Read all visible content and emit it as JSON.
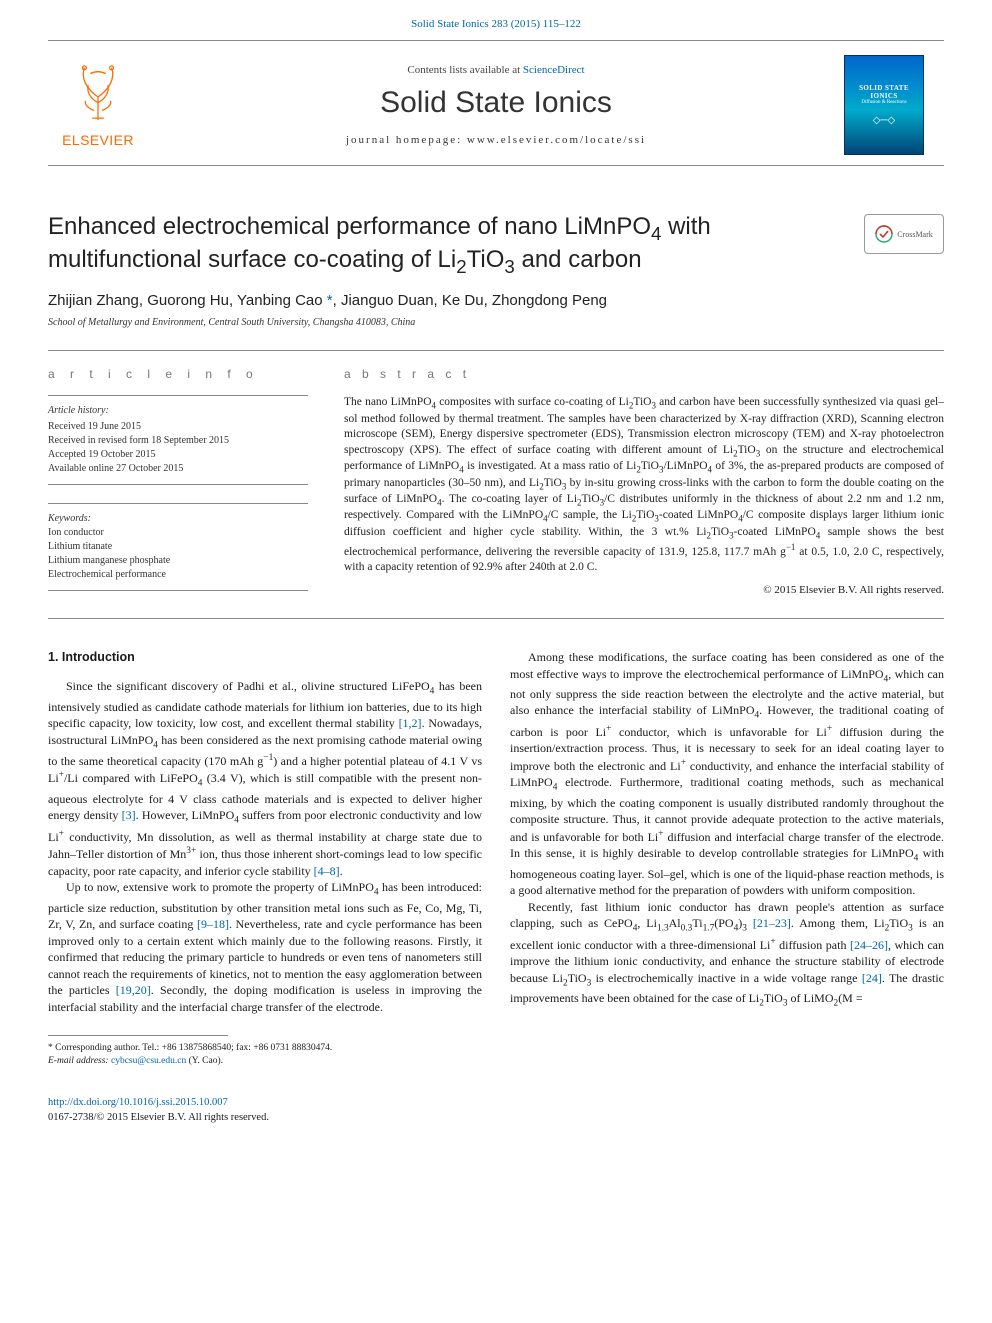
{
  "header_link": {
    "text": "Solid State Ionics 283 (2015) 115–122",
    "href": "#"
  },
  "masthead": {
    "contents_line_prefix": "Contents lists available at ",
    "contents_line_link": "ScienceDirect",
    "journal_title": "Solid State Ionics",
    "homepage_label": "journal homepage: www.elsevier.com/locate/ssi",
    "elsevier_word": "ELSEVIER",
    "cover": {
      "title": "SOLID STATE IONICS",
      "subtitle": "Diffusion & Reactions"
    }
  },
  "crossmark_label": "CrossMark",
  "article": {
    "title_html": "Enhanced electrochemical performance of nano LiMnPO<sub class='sub'>4</sub> with multifunctional surface co-coating of Li<sub class='sub'>2</sub>TiO<sub class='sub'>3</sub> and carbon",
    "authors_html": "Zhijian Zhang, Guorong Hu, Yanbing Cao <span class='asterisk'>*</span>, Jianguo Duan, Ke Du, Zhongdong Peng",
    "affiliation": "School of Metallurgy and Environment, Central South University, Changsha 410083, China"
  },
  "section_labels": {
    "article_info": "a r t i c l e   i n f o",
    "abstract": "A B S T R A C T"
  },
  "history": {
    "label": "Article history:",
    "lines": [
      "Received 19 June 2015",
      "Received in revised form 18 September 2015",
      "Accepted 19 October 2015",
      "Available online 27 October 2015"
    ]
  },
  "keywords": {
    "label": "Keywords:",
    "items": [
      "Ion conductor",
      "Lithium titanate",
      "Lithium manganese phosphate",
      "Electrochemical performance"
    ]
  },
  "abstract_html": "The nano LiMnPO<sub class='sub'>4</sub> composites with surface co-coating of Li<sub class='sub'>2</sub>TiO<sub class='sub'>3</sub> and carbon have been successfully synthesized via quasi gel–sol method followed by thermal treatment. The samples have been characterized by X-ray diffraction (XRD), Scanning electron microscope (SEM), Energy dispersive spectrometer (EDS), Transmission electron microscopy (TEM) and X-ray photoelectron spectroscopy (XPS). The effect of surface coating with different amount of Li<sub class='sub'>2</sub>TiO<sub class='sub'>3</sub> on the structure and electrochemical performance of LiMnPO<sub class='sub'>4</sub> is investigated. At a mass ratio of Li<sub class='sub'>2</sub>TiO<sub class='sub'>3</sub>/LiMnPO<sub class='sub'>4</sub> of 3%, the as-prepared products are composed of primary nanoparticles (30–50 nm), and Li<sub class='sub'>2</sub>TiO<sub class='sub'>3</sub> by in-situ growing cross-links with the carbon to form the double coating on the surface of LiMnPO<sub class='sub'>4</sub>. The co-coating layer of Li<sub class='sub'>2</sub>TiO<sub class='sub'>3</sub>/C distributes uniformly in the thickness of about 2.2 nm and 1.2 nm, respectively. Compared with the LiMnPO<sub class='sub'>4</sub>/C sample, the Li<sub class='sub'>2</sub>TiO<sub class='sub'>3</sub>-coated LiMnPO<sub class='sub'>4</sub>/C composite displays larger lithium ionic diffusion coefficient and higher cycle stability. Within, the 3 wt.% Li<sub class='sub'>2</sub>TiO<sub class='sub'>3</sub>-coated LiMnPO<sub class='sub'>4</sub> sample shows the best electrochemical performance, delivering the reversible capacity of 131.9, 125.8, 117.7 mAh g<sup class='sup'>−1</sup> at 0.5, 1.0, 2.0 C, respectively, with a capacity retention of 92.9% after 240th at 2.0 C.",
  "copyright": "© 2015 Elsevier B.V. All rights reserved.",
  "intro_heading": "1. Introduction",
  "intro_paragraphs_html": [
    "Since the significant discovery of Padhi et al., olivine structured LiFePO<sub class='sub'>4</sub> has been intensively studied as candidate cathode materials for lithium ion batteries, due to its high specific capacity, low toxicity, low cost, and excellent thermal stability <span class='ref'>[1,2]</span>. Nowadays, isostructural LiMnPO<sub class='sub'>4</sub> has been considered as the next promising cathode material owing to the same theoretical capacity (170 mAh g<sup class='sup'>−1</sup>) and a higher potential plateau of 4.1 V vs Li<sup class='sup'>+</sup>/Li compared with LiFePO<sub class='sub'>4</sub> (3.4 V), which is still compatible with the present non-aqueous electrolyte for 4 V class cathode materials and is expected to deliver higher energy density <span class='ref'>[3]</span>. However, LiMnPO<sub class='sub'>4</sub> suffers from poor electronic conductivity and low Li<sup class='sup'>+</sup> conductivity, Mn dissolution, as well as thermal instability at charge state due to Jahn–Teller distortion of Mn<sup class='sup'>3+</sup> ion, thus those inherent short-comings lead to low specific capacity, poor rate capacity, and inferior cycle stability <span class='ref'>[4–8]</span>.",
    "Up to now, extensive work to promote the property of LiMnPO<sub class='sub'>4</sub> has been introduced: particle size reduction, substitution by other transition metal ions such as Fe, Co, Mg, Ti, Zr, V, Zn, and surface coating <span class='ref'>[9–18]</span>. Nevertheless, rate and cycle performance has been improved only to a certain extent which mainly due to the following reasons. Firstly, it confirmed that reducing the primary particle to hundreds or even tens of nanometers still cannot reach the requirements of kinetics, not to mention the easy agglomeration between the particles <span class='ref'>[19,20]</span>. Secondly, the doping modification is useless in improving the interfacial stability and the interfacial charge transfer of the electrode.",
    "Among these modifications, the surface coating has been considered as one of the most effective ways to improve the electrochemical performance of LiMnPO<sub class='sub'>4</sub>, which can not only suppress the side reaction between the electrolyte and the active material, but also enhance the interfacial stability of LiMnPO<sub class='sub'>4</sub>. However, the traditional coating of carbon is poor Li<sup class='sup'>+</sup> conductor, which is unfavorable for Li<sup class='sup'>+</sup> diffusion during the insertion/extraction process. Thus, it is necessary to seek for an ideal coating layer to improve both the electronic and Li<sup class='sup'>+</sup> conductivity, and enhance the interfacial stability of LiMnPO<sub class='sub'>4</sub> electrode. Furthermore, traditional coating methods, such as mechanical mixing, by which the coating component is usually distributed randomly throughout the composite structure. Thus, it cannot provide adequate protection to the active materials, and is unfavorable for both Li<sup class='sup'>+</sup> diffusion and interfacial charge transfer of the electrode. In this sense, it is highly desirable to develop controllable strategies for LiMnPO<sub class='sub'>4</sub> with homogeneous coating layer. Sol–gel, which is one of the liquid-phase reaction methods, is a good alternative method for the preparation of powders with uniform composition.",
    "Recently, fast lithium ionic conductor has drawn people's attention as surface clapping, such as CePO<sub class='sub'>4</sub>, Li<sub class='sub'>1.3</sub>Al<sub class='sub'>0.3</sub>Ti<sub class='sub'>1.7</sub>(PO<sub class='sub'>4</sub>)<sub class='sub'>3</sub> <span class='ref'>[21–23]</span>. Among them, Li<sub class='sub'>2</sub>TiO<sub class='sub'>3</sub> is an excellent ionic conductor with a three-dimensional Li<sup class='sup'>+</sup> diffusion path <span class='ref'>[24–26]</span>, which can improve the lithium ionic conductivity, and enhance the structure stability of electrode because Li<sub class='sub'>2</sub>TiO<sub class='sub'>3</sub> is electrochemically inactive in a wide voltage range <span class='ref'>[24]</span>. The drastic improvements have been obtained for the case of Li<sub class='sub'>2</sub>TiO<sub class='sub'>3</sub> of LiMO<sub class='sub'>2</sub>(M ="
  ],
  "footnote_html": "* Corresponding author. Tel.: +86 13875868540; fax: +86 0731 88830474.<br><i>E-mail address:</i> <a href='#'>cybcsu@csu.edu.cn</a> (Y. Cao).",
  "footer": {
    "doi_link": "http://dx.doi.org/10.1016/j.ssi.2015.10.007",
    "issn_line": "0167-2738/© 2015 Elsevier B.V. All rights reserved."
  },
  "colors": {
    "link": "#0066aa",
    "elsevier_orange": "#ff6a00",
    "rule": "#888888",
    "body": "#1a1a1a"
  }
}
